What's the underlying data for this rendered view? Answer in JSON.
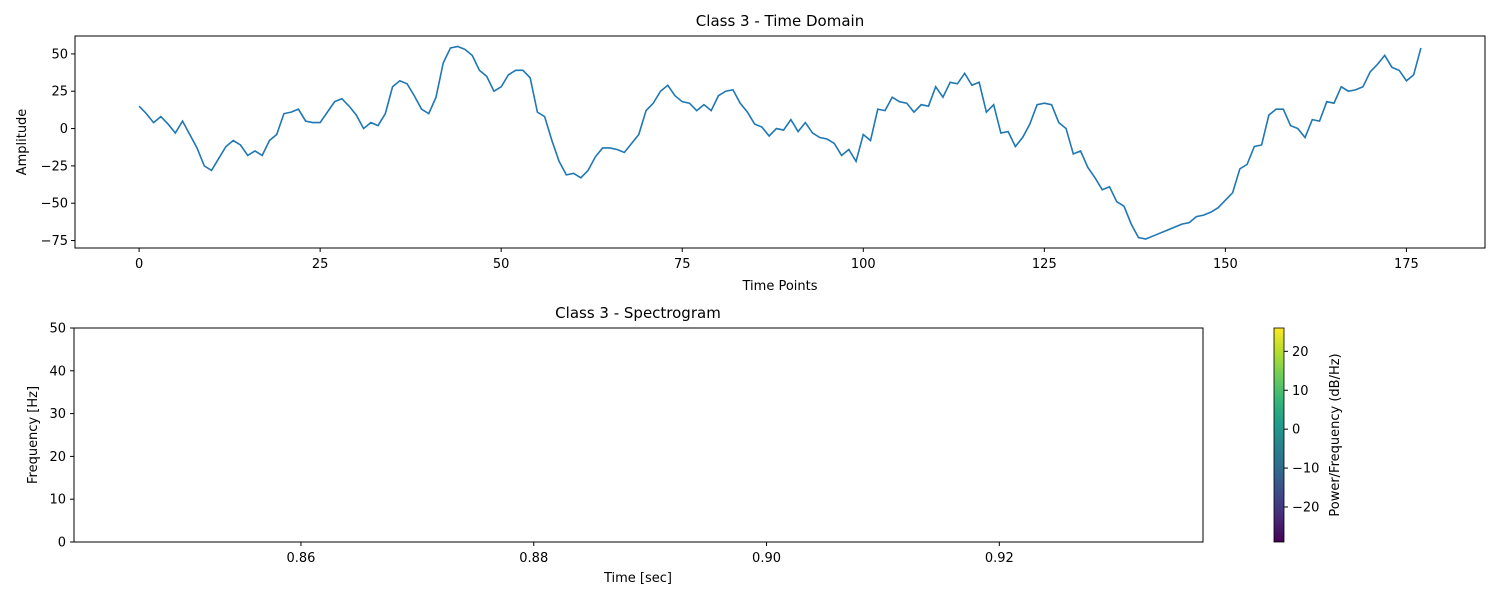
{
  "chart_data": [
    {
      "type": "line",
      "title": "Class 3 - Time Domain",
      "xlabel": "Time Points",
      "ylabel": "Amplitude",
      "xlim": [
        -8.85,
        185.85
      ],
      "ylim": [
        -80,
        62
      ],
      "xticks": [
        "0",
        "25",
        "50",
        "75",
        "100",
        "125",
        "150",
        "175"
      ],
      "yticks": [
        "−75",
        "−50",
        "−25",
        "0",
        "25",
        "50"
      ],
      "grid": false,
      "color": "#1f77b4",
      "series": [
        {
          "x": [
            0,
            1,
            2,
            3,
            4,
            5,
            6,
            7,
            8,
            9,
            10,
            11,
            12,
            13,
            14,
            15,
            16,
            17,
            18,
            19,
            20,
            21,
            22,
            23,
            24,
            25,
            26,
            27,
            28,
            29,
            30,
            31,
            32,
            33,
            34,
            35,
            36,
            37,
            38,
            39,
            40,
            41,
            42,
            43,
            44,
            45,
            46,
            47,
            48,
            49,
            50,
            51,
            52,
            53,
            54,
            55,
            56,
            57,
            58,
            59,
            60,
            61,
            62,
            63,
            64,
            65,
            66,
            67,
            68,
            69,
            70,
            71,
            72,
            73,
            74,
            75,
            76,
            77,
            78,
            79,
            80,
            81,
            82,
            83,
            84,
            85,
            86,
            87,
            88,
            89,
            90,
            91,
            92,
            93,
            94,
            95,
            96,
            97,
            98,
            99,
            100,
            101,
            102,
            103,
            104,
            105,
            106,
            107,
            108,
            109,
            110,
            111,
            112,
            113,
            114,
            115,
            116,
            117,
            118,
            119,
            120,
            121,
            122,
            123,
            124,
            125,
            126,
            127,
            128,
            129,
            130,
            131,
            132,
            133,
            134,
            135,
            136,
            137,
            138,
            139,
            140,
            141,
            142,
            143,
            144,
            145,
            146,
            147,
            148,
            149,
            150,
            151,
            152,
            153,
            154,
            155,
            156,
            157,
            158,
            159,
            160,
            161,
            162,
            163,
            164,
            165,
            166,
            167,
            168,
            169,
            170,
            171,
            172,
            173,
            174,
            175,
            176,
            177
          ],
          "values": [
            15,
            10,
            4,
            8,
            3,
            -3,
            5,
            -4,
            -13,
            -25,
            -28,
            -20,
            -12,
            -8,
            -11,
            -18,
            -15,
            -18,
            -8,
            -4,
            10,
            11,
            13,
            5,
            4,
            4,
            11,
            18,
            20,
            15,
            9,
            0,
            4,
            2,
            10,
            28,
            32,
            30,
            22,
            13,
            10,
            21,
            44,
            54,
            55,
            53,
            49,
            39,
            35,
            25,
            28,
            36,
            39,
            39,
            34,
            11,
            8,
            -8,
            -22,
            -31,
            -30,
            -33,
            -28,
            -19,
            -13,
            -13,
            -14,
            -16,
            -10,
            -4,
            12,
            17,
            25,
            29,
            22,
            18,
            17,
            12,
            16,
            12,
            22,
            25,
            26,
            17,
            11,
            3,
            1,
            -5,
            0,
            -1,
            6,
            -2,
            4,
            -3,
            -6,
            -7,
            -10,
            -18,
            -14,
            -22,
            -4,
            -8,
            13,
            12,
            21,
            18,
            17,
            11,
            16,
            15,
            28,
            21,
            31,
            30,
            37,
            29,
            31,
            11,
            16,
            -3,
            -2,
            -12,
            -6,
            3,
            16,
            17,
            16,
            4,
            0,
            -17,
            -15,
            -26,
            -33,
            -41,
            -39,
            -49,
            -52,
            -64,
            -73,
            -74,
            -72,
            -70,
            -68,
            -66,
            -64,
            -63,
            -59,
            -58,
            -56,
            -53,
            -48,
            -43,
            -27,
            -24,
            -12,
            -11,
            9,
            13,
            13,
            2,
            0,
            -6,
            6,
            5,
            18,
            17,
            28,
            25,
            26,
            28,
            38,
            43,
            49,
            41,
            39,
            32,
            36,
            54
          ]
        }
      ]
    },
    {
      "type": "heatmap",
      "title": "Class 3 - Spectrogram",
      "xlabel": "Time [sec]",
      "ylabel": "Frequency [Hz]",
      "xlim": [
        0.8405,
        0.9375
      ],
      "ylim": [
        0,
        50
      ],
      "xticks": [
        "0.86",
        "0.88",
        "0.90",
        "0.92"
      ],
      "yticks": [
        "0",
        "10",
        "20",
        "30",
        "40",
        "50"
      ],
      "colorbar": {
        "label": "Power/Frequency (dB/Hz)",
        "range": [
          -29,
          26
        ],
        "ticks": [
          "−20",
          "−10",
          "0",
          "10",
          "20"
        ],
        "colormap": [
          "#440154",
          "#482878",
          "#3e4989",
          "#31688e",
          "#26828e",
          "#1f9e89",
          "#35b779",
          "#6ece58",
          "#b5de2b",
          "#fde725"
        ]
      }
    }
  ]
}
